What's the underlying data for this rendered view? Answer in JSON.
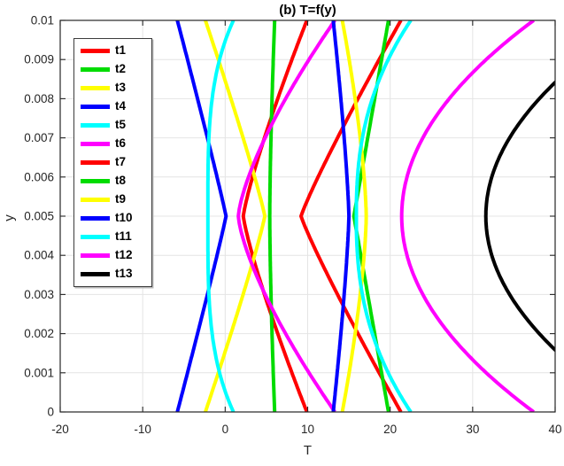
{
  "figure": {
    "title": "(b) T=f(y)",
    "background": "#ffffff"
  },
  "axes": {
    "xlabel": "T",
    "ylabel": "y",
    "x_tick_labels": [
      "-20",
      "-10",
      "0",
      "10",
      "20",
      "30",
      "40"
    ],
    "y_tick_labels": [
      "0",
      "0.001",
      "0.002",
      "0.003",
      "0.004",
      "0.005",
      "0.006",
      "0.007",
      "0.008",
      "0.009",
      "0.01"
    ],
    "axis_color": "#262626",
    "grid_color": "#e4e4e4",
    "grid": true
  },
  "chart_data": {
    "type": "line",
    "title": "(b) T=f(y)",
    "xlabel": "T",
    "ylabel": "y",
    "xlim": [
      -20,
      40
    ],
    "ylim": [
      0,
      0.01
    ],
    "grid": true,
    "legend_position": "upper left",
    "model": "Symmetric profiles about mid-channel: T(y) = T_mid + (T_wall - T_mid) * (|y - 0.005| / 0.005)^p, y in [0, 0.01]; curves clipped to x-range [-20,40]",
    "y_samples": [
      0,
      0.001,
      0.002,
      0.003,
      0.004,
      0.005,
      0.006,
      0.007,
      0.008,
      0.009,
      0.01
    ],
    "series": [
      {
        "name": "t1",
        "color": "#ff0000",
        "T_wall": 9.9,
        "T_mid": 2.2,
        "p": 1.2,
        "T_at_y_samples": [
          9.9,
          8.1,
          6.4,
          4.8,
          3.3,
          2.2,
          3.3,
          4.8,
          6.4,
          8.1,
          9.9
        ]
      },
      {
        "name": "t2",
        "color": "#00dc00",
        "T_wall": 6.0,
        "T_mid": 5.4,
        "p": 1.5,
        "T_at_y_samples": [
          6.0,
          5.8,
          5.7,
          5.6,
          5.5,
          5.4,
          5.5,
          5.6,
          5.7,
          5.8,
          6.0
        ]
      },
      {
        "name": "t3",
        "color": "#ffff00",
        "T_wall": -2.4,
        "T_mid": 4.8,
        "p": 1.1,
        "T_at_y_samples": [
          -2.4,
          -0.8,
          0.7,
          2.2,
          3.6,
          4.8,
          3.6,
          2.2,
          0.7,
          -0.8,
          -2.4
        ]
      },
      {
        "name": "t4",
        "color": "#0000ff",
        "T_wall": -5.8,
        "T_mid": 0.1,
        "p": 1.05,
        "T_at_y_samples": [
          -5.8,
          -4.5,
          -3.2,
          -1.9,
          -0.7,
          0.1,
          -0.7,
          -1.9,
          -3.2,
          -4.5,
          -5.8
        ]
      },
      {
        "name": "t5",
        "color": "#00ffff",
        "T_wall": 1.0,
        "T_mid": -2.1,
        "p": 3.5,
        "T_at_y_samples": [
          1.0,
          -0.7,
          -1.6,
          -2.0,
          -2.1,
          -2.1,
          -2.1,
          -2.0,
          -1.6,
          -0.7,
          1.0
        ]
      },
      {
        "name": "t6",
        "color": "#ff00ff",
        "T_wall": 13.3,
        "T_mid": 1.6,
        "p": 1.4,
        "T_at_y_samples": [
          13.3,
          10.2,
          7.3,
          4.8,
          2.8,
          1.6,
          2.8,
          4.8,
          7.3,
          10.2,
          13.3
        ]
      },
      {
        "name": "t7",
        "color": "#ff0000",
        "T_wall": 21.3,
        "T_mid": 9.2,
        "p": 1.1,
        "T_at_y_samples": [
          21.3,
          18.7,
          16.1,
          13.6,
          11.3,
          9.2,
          11.3,
          13.6,
          16.1,
          18.7,
          21.3
        ]
      },
      {
        "name": "t8",
        "color": "#00dc00",
        "T_wall": 19.8,
        "T_mid": 15.6,
        "p": 1.0,
        "T_at_y_samples": [
          19.8,
          19.0,
          18.1,
          17.3,
          16.4,
          15.6,
          16.4,
          17.3,
          18.1,
          19.0,
          19.8
        ]
      },
      {
        "name": "t9",
        "color": "#ffff00",
        "T_wall": 14.2,
        "T_mid": 17.1,
        "p": 1.5,
        "T_at_y_samples": [
          14.2,
          15.0,
          15.8,
          16.4,
          16.8,
          17.1,
          16.8,
          16.4,
          15.8,
          15.0,
          14.2
        ]
      },
      {
        "name": "t10",
        "color": "#0000ff",
        "T_wall": 13.1,
        "T_mid": 15.0,
        "p": 1.3,
        "T_at_y_samples": [
          13.1,
          13.6,
          14.0,
          14.4,
          14.8,
          15.0,
          14.8,
          14.4,
          14.0,
          13.6,
          13.1
        ]
      },
      {
        "name": "t11",
        "color": "#00ffff",
        "T_wall": 22.5,
        "T_mid": 15.9,
        "p": 2.4,
        "T_at_y_samples": [
          22.5,
          19.8,
          17.8,
          16.6,
          16.0,
          15.9,
          16.0,
          16.6,
          17.8,
          19.8,
          22.5
        ]
      },
      {
        "name": "t12",
        "color": "#ff00ff",
        "T_wall": 37.4,
        "T_mid": 21.4,
        "p": 2.0,
        "T_at_y_samples": [
          37.4,
          31.6,
          27.2,
          24.0,
          22.0,
          21.4,
          22.0,
          24.0,
          27.2,
          31.6,
          37.4
        ]
      },
      {
        "name": "t13",
        "color": "#000000",
        "T_wall": 49.6,
        "T_mid": 31.6,
        "p": 2.0,
        "T_at_y_samples": [
          49.6,
          43.1,
          38.1,
          34.5,
          32.3,
          31.6,
          32.3,
          34.5,
          38.1,
          43.1,
          49.6
        ]
      }
    ]
  }
}
